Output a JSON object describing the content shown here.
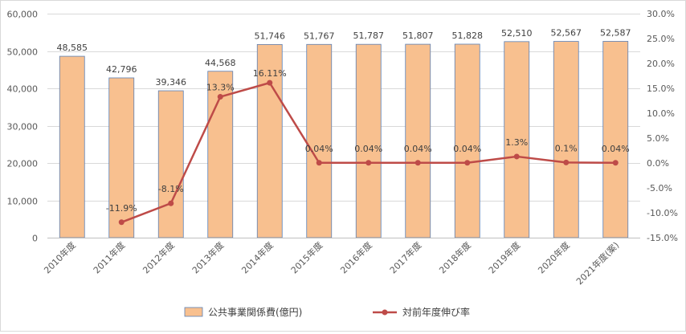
{
  "chart_data": {
    "type": "bar+line",
    "categories": [
      "2010年度",
      "2011年度",
      "2012年度",
      "2013年度",
      "2014年度",
      "2015年度",
      "2016年度",
      "2017年度",
      "2018年度",
      "2019年度",
      "2020年度",
      "2021年度(案)"
    ],
    "series": [
      {
        "name": "公共事業関係費(億円)",
        "type": "bar",
        "axis": "left",
        "values": [
          48585,
          42796,
          39346,
          44568,
          51746,
          51767,
          51787,
          51807,
          51828,
          52510,
          52567,
          52587
        ],
        "labels": [
          "48,585",
          "42,796",
          "39,346",
          "44,568",
          "51,746",
          "51,767",
          "51,787",
          "51,807",
          "51,828",
          "52,510",
          "52,567",
          "52,587"
        ]
      },
      {
        "name": "対前年度伸び率",
        "type": "line",
        "axis": "right",
        "values": [
          null,
          -11.9,
          -8.1,
          13.3,
          16.11,
          0.04,
          0.04,
          0.04,
          0.04,
          1.3,
          0.1,
          0.04
        ],
        "labels": [
          "",
          "-11.9%",
          "-8.1%",
          "13.3%",
          "16.11%",
          "0.04%",
          "0.04%",
          "0.04%",
          "0.04%",
          "1.3%",
          "0.1%",
          "0.04%"
        ]
      }
    ],
    "y_left": {
      "min": 0,
      "max": 60000,
      "ticks": [
        "0",
        "10,000",
        "20,000",
        "30,000",
        "40,000",
        "50,000",
        "60,000"
      ]
    },
    "y_right": {
      "min": -15,
      "max": 30,
      "ticks": [
        "-15.0%",
        "-10.0%",
        "-5.0%",
        "0.0%",
        "5.0%",
        "10.0%",
        "15.0%",
        "20.0%",
        "25.0%",
        "30.0%"
      ]
    },
    "grid": true,
    "legend_position": "bottom",
    "colors": {
      "bar_fill": "#f8c08f",
      "bar_stroke": "#5b7fb5",
      "line": "#be4b48",
      "grid": "#d9d9d9"
    }
  }
}
